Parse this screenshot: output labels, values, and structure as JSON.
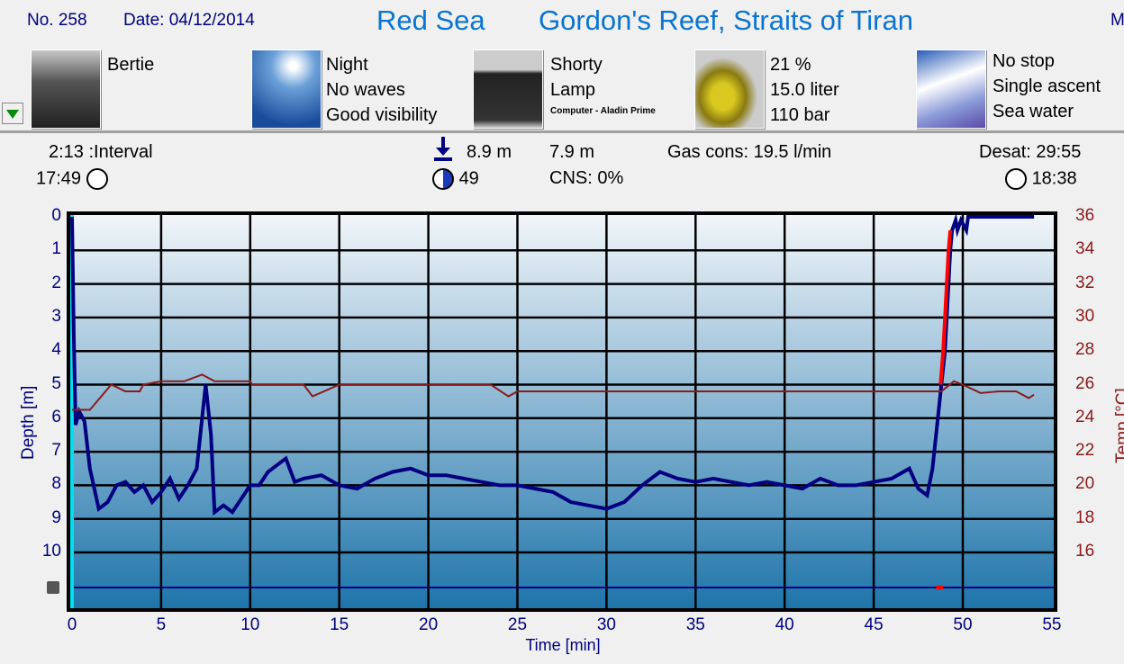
{
  "header": {
    "number": "No. 258",
    "date": "Date: 04/12/2014",
    "region": "Red Sea",
    "site": "Gordon's Reef, Straits of Tiran",
    "cut_off": "M"
  },
  "info": {
    "buddy": {
      "icon": "divers-photo",
      "lines": [
        "Bertie"
      ]
    },
    "conditions": {
      "icon": "sky-photo",
      "lines": [
        "Night",
        "No waves",
        "Good visibility"
      ]
    },
    "equipment": {
      "icon": "camera-bag-photo",
      "lines": [
        "Shorty",
        "Lamp"
      ],
      "small": "Computer - Aladin Prime"
    },
    "gas": {
      "icon": "tanks-photo",
      "lines": [
        "21 %",
        "15.0 liter",
        "110 bar"
      ]
    },
    "dive": {
      "icon": "diver-photo",
      "lines": [
        "No stop",
        "Single ascent",
        "Sea water"
      ]
    }
  },
  "stats": {
    "interval": "2:13 :Interval",
    "entry_time": "17:49",
    "max_depth": "8.9 m",
    "avg_depth": "7.9 m",
    "gas_cons": "Gas cons: 19.5 l/min",
    "duration": "49",
    "cns": "CNS:  0%",
    "desat": "Desat: 29:55",
    "exit_time": "18:38"
  },
  "colors": {
    "depth": "#000080",
    "ascent_warning": "#ff0000",
    "temp": "#8b1a1a",
    "accent": "#0a74d4"
  },
  "chart_data": {
    "type": "line",
    "xlabel": "Time [min]",
    "ylabel": "Depth [m]",
    "y2label": "Temp [°C]",
    "xlim": [
      0,
      55
    ],
    "ylim": [
      0,
      11.5
    ],
    "y2lim": [
      14,
      37
    ],
    "xticks": [
      "0",
      "5",
      "10",
      "15",
      "20",
      "25",
      "30",
      "35",
      "40",
      "45",
      "50",
      "55"
    ],
    "yticks": [
      "0",
      "1",
      "2",
      "3",
      "4",
      "5",
      "6",
      "7",
      "8",
      "9",
      "10"
    ],
    "y2ticks": [
      "36",
      "34",
      "32",
      "30",
      "28",
      "26",
      "24",
      "22",
      "20",
      "18",
      "16"
    ],
    "grid": true,
    "series": [
      {
        "key": "depth",
        "x": [
          0,
          0.1,
          0.2,
          0.4,
          0.7,
          1,
          1.5,
          2,
          2.5,
          3,
          3.5,
          4,
          4.5,
          5,
          5.5,
          6,
          6.5,
          7,
          7.3,
          7.5,
          7.8,
          8,
          8.5,
          9,
          9.5,
          10,
          10.5,
          11,
          12,
          12.5,
          13,
          14,
          15,
          16,
          17,
          18,
          19,
          20,
          21,
          22,
          23,
          24,
          25,
          26,
          27,
          28,
          29,
          30,
          31,
          32,
          33,
          34,
          35,
          36,
          37,
          38,
          39,
          40,
          41,
          42,
          43,
          44,
          45,
          46,
          47,
          47.5,
          48,
          48.3,
          48.7,
          49,
          49.1,
          49.3,
          49.4,
          49.6,
          49.7,
          49.9,
          50.2,
          50.3,
          54
        ],
        "y": [
          0,
          3.6,
          6.2,
          5.8,
          6.1,
          7.5,
          8.7,
          8.5,
          8.0,
          7.9,
          8.2,
          8.0,
          8.5,
          8.2,
          7.8,
          8.4,
          8.0,
          7.5,
          6.0,
          5.0,
          6.5,
          8.8,
          8.6,
          8.8,
          8.4,
          8.0,
          8.0,
          7.6,
          7.2,
          7.9,
          7.8,
          7.7,
          8.0,
          8.1,
          7.8,
          7.6,
          7.5,
          7.7,
          7.7,
          7.8,
          7.9,
          8.0,
          8.0,
          8.1,
          8.2,
          8.5,
          8.6,
          8.7,
          8.5,
          8.0,
          7.6,
          7.8,
          7.9,
          7.8,
          7.9,
          8.0,
          7.9,
          8.0,
          8.1,
          7.8,
          8.0,
          8.0,
          7.9,
          7.8,
          7.5,
          8.1,
          8.3,
          7.5,
          5.5,
          4.0,
          3.0,
          1.0,
          0.4,
          0.1,
          0.4,
          0.1,
          0.4,
          0,
          0
        ]
      },
      {
        "key": "ascent_warning",
        "x": [
          48.75,
          48.9,
          49.0,
          49.1,
          49.2,
          49.3
        ],
        "y": [
          5.0,
          4.0,
          3.0,
          2.0,
          1.0,
          0.4
        ]
      },
      {
        "key": "temp",
        "x": [
          0,
          1,
          2.2,
          3,
          3.8,
          4,
          5,
          6.3,
          7.3,
          8,
          10,
          10.1,
          13,
          13.5,
          15,
          23.5,
          24.5,
          25,
          48.8,
          49.5,
          50,
          51,
          52,
          53,
          53.7,
          54
        ],
        "y": [
          24.5,
          24.5,
          26,
          25.6,
          25.6,
          26,
          26.2,
          26.2,
          26.6,
          26.2,
          26.2,
          26,
          26,
          25.3,
          26,
          26,
          25.3,
          25.6,
          25.6,
          26.2,
          26,
          25.5,
          25.6,
          25.6,
          25.2,
          25.4
        ]
      }
    ]
  }
}
